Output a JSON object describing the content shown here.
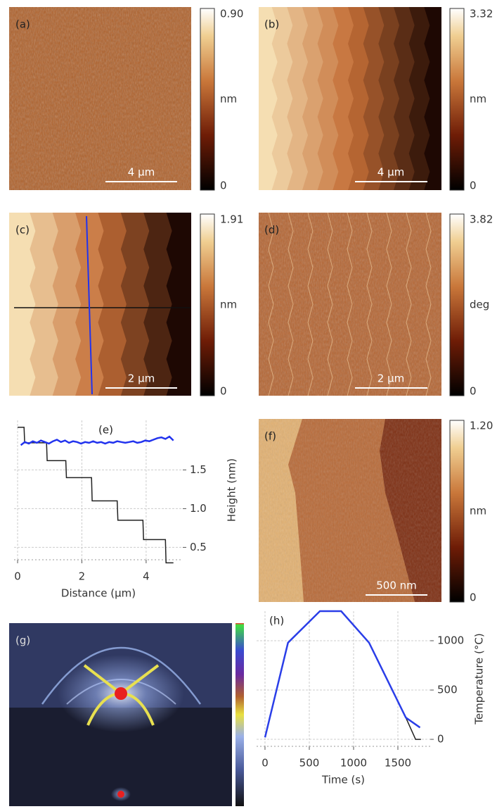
{
  "images": [
    {
      "label": "(a)",
      "scale_bar": "4 µm",
      "colorbar": {
        "max": "0.90",
        "unit": "nm",
        "min": "0"
      }
    },
    {
      "label": "(b)",
      "scale_bar": "4 µm",
      "colorbar": {
        "max": "3.32",
        "unit": "nm",
        "min": "0"
      }
    },
    {
      "label": "(c)",
      "scale_bar": "2 µm",
      "colorbar": {
        "max": "1.91",
        "unit": "nm",
        "min": "0"
      }
    },
    {
      "label": "(d)",
      "scale_bar": "2 µm",
      "colorbar": {
        "max": "3.82",
        "unit": "deg",
        "min": "0"
      }
    },
    {
      "label": "(f)",
      "scale_bar": "500 nm",
      "colorbar": {
        "max": "1.20",
        "unit": "nm",
        "min": "0"
      }
    },
    {
      "label": "(g)"
    }
  ],
  "chart_data": [
    {
      "type": "line",
      "title": "(e)",
      "x_label": "Distance (µm)",
      "y_label": "Height (nm)",
      "yaxis_side": "right",
      "grid": true,
      "xlim": [
        -0.11,
        5.14
      ],
      "ylim": [
        0.34,
        2.14
      ],
      "xticks": [
        0,
        2,
        4
      ],
      "yticks": [
        0.5,
        {
          "value": 1,
          "label": "1.0"
        },
        1.5
      ],
      "series": [
        {
          "color": "#222222",
          "x": [
            0,
            0.2,
            0.22,
            0.9,
            0.92,
            1.5,
            1.52,
            2.3,
            2.32,
            3.1,
            3.12,
            3.9,
            3.92,
            4.6,
            4.62,
            4.85
          ],
          "values": [
            2.05,
            2.05,
            1.85,
            1.85,
            1.62,
            1.62,
            1.4,
            1.4,
            1.1,
            1.1,
            0.85,
            0.85,
            0.6,
            0.6,
            0.3,
            0.3
          ]
        },
        {
          "color": "#2233ee",
          "x": [
            0.1,
            0.225,
            0.35,
            0.475,
            0.6,
            0.725,
            0.85,
            0.975,
            1.1,
            1.225,
            1.35,
            1.475,
            1.6,
            1.725,
            1.85,
            1.975,
            2.1,
            2.225,
            2.35,
            2.475,
            2.6,
            2.725,
            2.85,
            2.975,
            3.1,
            3.225,
            3.35,
            3.475,
            3.6,
            3.725,
            3.85,
            3.975,
            4.1,
            4.225,
            4.35,
            4.475,
            4.6,
            4.725,
            4.85
          ],
          "values": [
            1.82,
            1.86,
            1.84,
            1.87,
            1.85,
            1.88,
            1.86,
            1.84,
            1.87,
            1.89,
            1.86,
            1.88,
            1.85,
            1.87,
            1.86,
            1.84,
            1.86,
            1.85,
            1.87,
            1.85,
            1.86,
            1.84,
            1.86,
            1.85,
            1.87,
            1.86,
            1.85,
            1.86,
            1.87,
            1.85,
            1.86,
            1.88,
            1.87,
            1.89,
            1.91,
            1.92,
            1.9,
            1.93,
            1.88
          ]
        }
      ]
    },
    {
      "type": "line",
      "title": "(h)",
      "x_label": "Time (s)",
      "y_label": "Temperature (°C)",
      "yaxis_side": "right",
      "grid": true,
      "xlim": [
        -95,
        1865
      ],
      "ylim": [
        -71,
        1300
      ],
      "xticks": [
        0,
        500,
        1000,
        1500
      ],
      "yticks": [
        0,
        500,
        1000
      ],
      "series": [
        {
          "color": "#222222",
          "x": [
            1590,
            1700,
            1760
          ],
          "values": [
            220,
            0,
            0
          ]
        },
        {
          "color": "#2a3ee8",
          "x": [
            0,
            260,
            620,
            860,
            1175,
            1590,
            1750
          ],
          "values": [
            20,
            980,
            1300,
            1300,
            980,
            220,
            120
          ]
        }
      ]
    }
  ]
}
